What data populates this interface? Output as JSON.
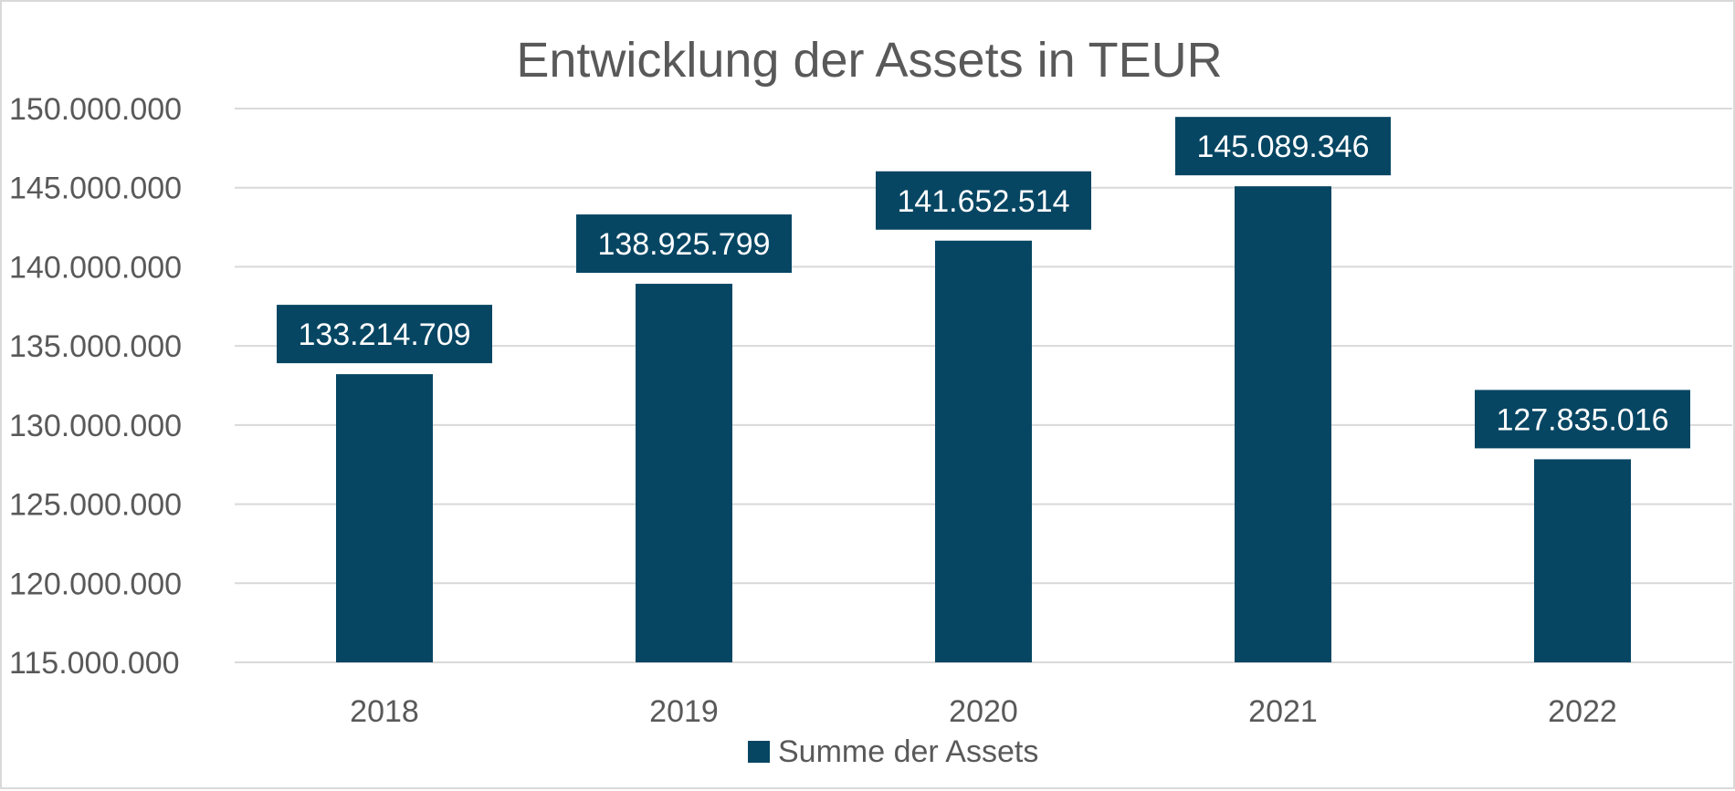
{
  "chart_data": {
    "type": "bar",
    "title": "Entwicklung der Assets in TEUR",
    "categories": [
      "2018",
      "2019",
      "2020",
      "2021",
      "2022"
    ],
    "series": [
      {
        "name": "Summe der Assets",
        "values": [
          133214709,
          138925799,
          141652514,
          145089346,
          127835016
        ],
        "labels": [
          "133.214.709",
          "138.925.799",
          "141.652.514",
          "145.089.346",
          "127.835.016"
        ]
      }
    ],
    "ylim": [
      115000000,
      150000000
    ],
    "yticks": [
      "115.000.000",
      "120.000.000",
      "125.000.000",
      "130.000.000",
      "135.000.000",
      "140.000.000",
      "145.000.000",
      "150.000.000"
    ],
    "ytick_values": [
      115000000,
      120000000,
      125000000,
      130000000,
      135000000,
      140000000,
      145000000,
      150000000
    ],
    "grid": true,
    "legend": "bottom",
    "colors": {
      "bar": "#064663",
      "label_bg": "#064663",
      "label_text": "#ffffff"
    }
  }
}
